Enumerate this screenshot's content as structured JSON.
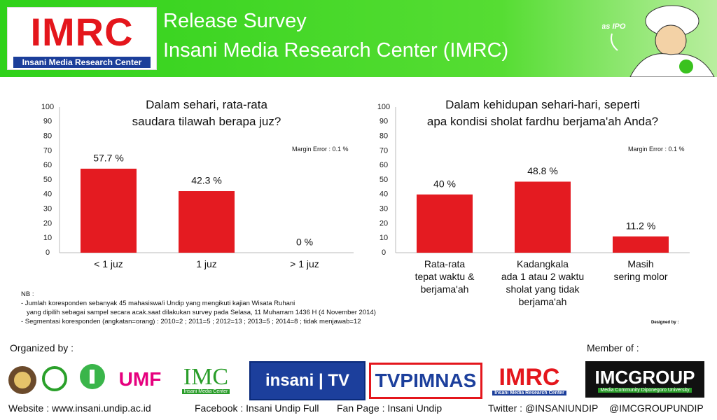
{
  "header": {
    "logo_text": "IMRC",
    "logo_caption": "Insani Media Research Center",
    "title": "Release Survey",
    "subtitle": "Insani Media Research Center (IMRC)",
    "mascot_label": "Mas IPO"
  },
  "chart_data": [
    {
      "type": "bar",
      "title": "Dalam sehari, rata-rata\nsaudara tilawah berapa juz?",
      "annotation": "Margin Error : 0.1 %",
      "categories": [
        "< 1 juz",
        "1 juz",
        "> 1 juz"
      ],
      "values": [
        57.7,
        42.3,
        0
      ],
      "value_labels": [
        "57.7 %",
        "42.3 %",
        "0 %"
      ],
      "color": "#e41b21",
      "ylim": [
        0,
        100
      ],
      "yticks": [
        0,
        10,
        20,
        30,
        40,
        50,
        60,
        70,
        80,
        90,
        100
      ],
      "grid": false
    },
    {
      "type": "bar",
      "title": "Dalam kehidupan sehari-hari, seperti\napa kondisi sholat fardhu berjama'ah Anda?",
      "annotation": "Margin Error : 0.1 %",
      "categories": [
        "Rata-rata\ntepat waktu &\nberjama'ah",
        "Kadangkala\nada 1 atau 2 waktu\nsholat yang tidak\nberjama'ah",
        "Masih\nsering molor"
      ],
      "values": [
        40,
        48.8,
        11.2
      ],
      "value_labels": [
        "40 %",
        "48.8 %",
        "11.2 %"
      ],
      "color": "#e41b21",
      "ylim": [
        0,
        100
      ],
      "yticks": [
        0,
        10,
        20,
        30,
        40,
        50,
        60,
        70,
        80,
        90,
        100
      ],
      "grid": false
    }
  ],
  "notes": {
    "heading": "NB :",
    "lines": [
      "- Jumlah koresponden sebanyak 45 mahasiswa/i Undip yang mengikuti kajian Wisata Ruhani",
      "yang dipilih sebagai sampel secara acak.saat dilakukan survey pada Selasa, 11 Muharram 1436 H (4 November 2014)",
      "- Segmentasi koresponden (angkatan=orang) : 2010=2 ; 2011=5 ; 2012=13 ; 2013=5 ; 2014=8 ; tidak menjawab=12"
    ]
  },
  "designed_by": "Designed by :",
  "footer": {
    "organized_by": "Organized by :",
    "member_of": "Member of :",
    "logos": {
      "umf": "UMF",
      "imc": "IMC",
      "imc_caption": "Insani Media Center",
      "insani_tv": "insani | TV",
      "tvpimnas": "TVPIMNAS",
      "imrc": "IMRC",
      "imrc_caption": "Insani Media Research Center",
      "imcgroup": "IMCGROUP",
      "imcgroup_caption": "Media Community Diponegoro University"
    },
    "links": [
      "Website : www.insani.undip.ac.id",
      "Facebook : Insani Undip Full",
      "Fan Page : Insani Undip",
      "Twitter : @INSANIUNDIP",
      "@IMCGROUPUNDIP"
    ]
  }
}
